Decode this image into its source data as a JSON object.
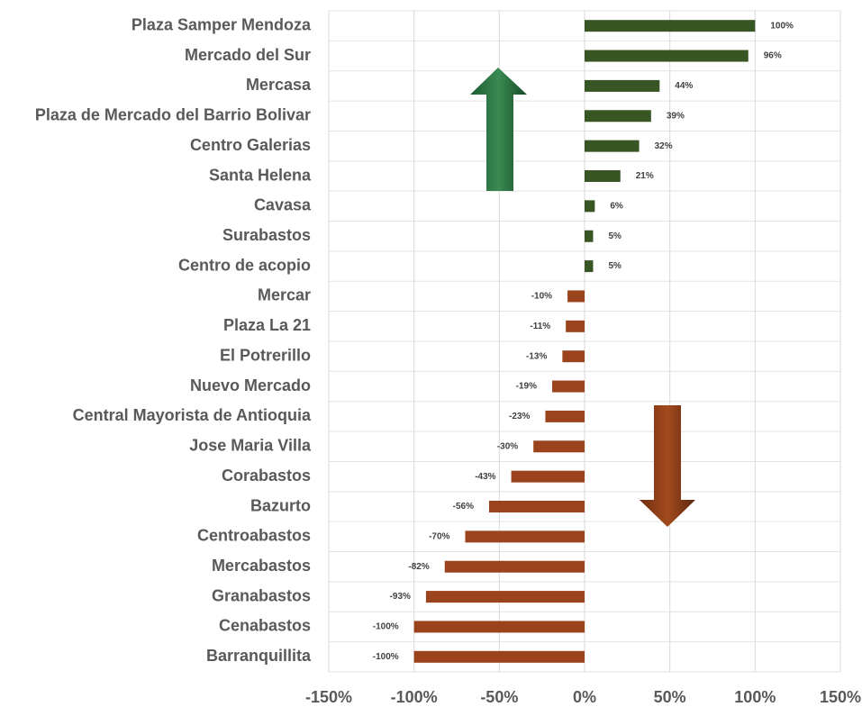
{
  "chart_data": {
    "type": "barh",
    "categories": [
      "Plaza Samper Mendoza",
      "Mercado del Sur",
      "Mercasa",
      "Plaza de Mercado del Barrio Bolivar",
      "Centro Galerias",
      "Santa Helena",
      "Cavasa",
      "Surabastos",
      "Centro de acopio",
      "Mercar",
      "Plaza La 21",
      "El Potrerillo",
      "Nuevo Mercado",
      "Central Mayorista de Antioquia",
      "Jose Maria Villa",
      "Corabastos",
      "Bazurto",
      "Centroabastos",
      "Mercabastos",
      "Granabastos",
      "Cenabastos",
      "Barranquillita"
    ],
    "values": [
      100,
      96,
      44,
      39,
      32,
      21,
      6,
      5,
      5,
      -10,
      -11,
      -13,
      -19,
      -23,
      -30,
      -43,
      -56,
      -70,
      -82,
      -93,
      -100,
      -100
    ],
    "value_labels": [
      "100%",
      "96%",
      "44%",
      "39%",
      "32%",
      "21%",
      "6%",
      "5%",
      "5%",
      "-10%",
      "-11%",
      "-13%",
      "-19%",
      "-23%",
      "-30%",
      "-43%",
      "-56%",
      "-70%",
      "-82%",
      "-93%",
      "-100%",
      "-100%"
    ],
    "positive_color": "#375623",
    "negative_color": "#9a431c",
    "xlim": [
      -150,
      150
    ],
    "xticks": [
      {
        "value": -150,
        "label": "-150%"
      },
      {
        "value": -100,
        "label": "-100%"
      },
      {
        "value": -50,
        "label": "-50%"
      },
      {
        "value": 0,
        "label": "0%"
      },
      {
        "value": 50,
        "label": "50%"
      },
      {
        "value": 100,
        "label": "100%"
      },
      {
        "value": 150,
        "label": "150%"
      }
    ],
    "grid": true
  }
}
